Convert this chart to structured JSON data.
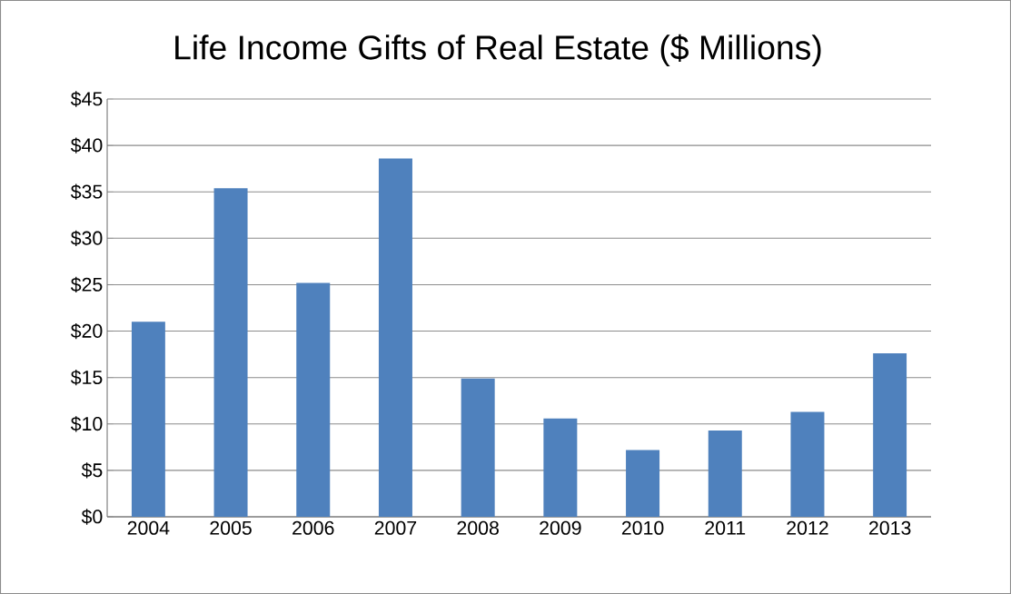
{
  "chart_data": {
    "type": "bar",
    "title": "Life Income Gifts of Real Estate ($ Millions)",
    "categories": [
      "2004",
      "2005",
      "2006",
      "2007",
      "2008",
      "2009",
      "2010",
      "2011",
      "2012",
      "2013"
    ],
    "values": [
      21.0,
      35.4,
      25.2,
      38.6,
      14.9,
      10.6,
      7.2,
      9.3,
      11.3,
      17.6
    ],
    "color": "#4f81bd",
    "ylim": [
      0,
      45
    ],
    "yticks": [
      {
        "value": 0,
        "label": "$0"
      },
      {
        "value": 5,
        "label": "$5"
      },
      {
        "value": 10,
        "label": "$10"
      },
      {
        "value": 15,
        "label": "$15"
      },
      {
        "value": 20,
        "label": "$20"
      },
      {
        "value": 25,
        "label": "$25"
      },
      {
        "value": 30,
        "label": "$30"
      },
      {
        "value": 35,
        "label": "$35"
      },
      {
        "value": 40,
        "label": "$40"
      },
      {
        "value": 45,
        "label": "$45"
      }
    ],
    "grid": "y"
  }
}
